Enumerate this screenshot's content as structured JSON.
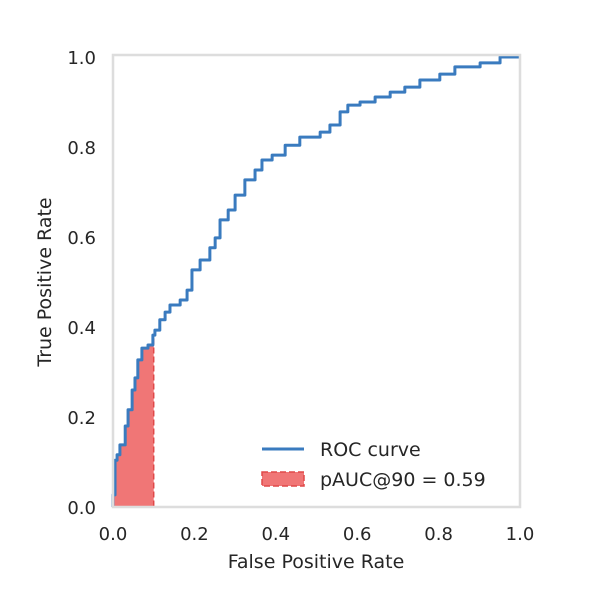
{
  "chart_data": {
    "type": "line",
    "title": "",
    "xlabel": "False Positive Rate",
    "ylabel": "True Positive Rate",
    "xlim": [
      0,
      1
    ],
    "ylim": [
      0,
      1
    ],
    "grid": false,
    "legend_position": "bottom-right",
    "xticks": [
      "0.0",
      "0.2",
      "0.4",
      "0.6",
      "0.8",
      "1.0"
    ],
    "yticks": [
      "0.0",
      "0.2",
      "0.4",
      "0.6",
      "0.8",
      "1.0"
    ],
    "colors": {
      "roc": "#3a7bbf",
      "fill": "#f07676",
      "fill_edge": "#e04848",
      "axes": "#dddddd"
    },
    "series": [
      {
        "name": "ROC curve",
        "x": [
          0,
          0.005,
          0.01,
          0.017,
          0.03,
          0.037,
          0.047,
          0.054,
          0.061,
          0.071,
          0.086,
          0.098,
          0.103,
          0.115,
          0.128,
          0.14,
          0.165,
          0.182,
          0.194,
          0.214,
          0.238,
          0.251,
          0.263,
          0.283,
          0.3,
          0.324,
          0.349,
          0.366,
          0.391,
          0.423,
          0.459,
          0.509,
          0.533,
          0.558,
          0.577,
          0.607,
          0.644,
          0.681,
          0.717,
          0.754,
          0.803,
          0.84,
          0.902,
          0.951,
          1
        ],
        "y": [
          0,
          0.027,
          0.104,
          0.116,
          0.138,
          0.18,
          0.216,
          0.26,
          0.287,
          0.327,
          0.353,
          0.36,
          0.382,
          0.393,
          0.416,
          0.433,
          0.449,
          0.46,
          0.482,
          0.527,
          0.549,
          0.576,
          0.598,
          0.638,
          0.66,
          0.693,
          0.727,
          0.749,
          0.771,
          0.782,
          0.804,
          0.822,
          0.833,
          0.849,
          0.878,
          0.893,
          0.9,
          0.911,
          0.922,
          0.933,
          0.949,
          0.962,
          0.978,
          0.987,
          1
        ]
      }
    ],
    "shaded_region": {
      "name": "pAUC@90 = 0.59",
      "x_max": 0.1
    }
  }
}
